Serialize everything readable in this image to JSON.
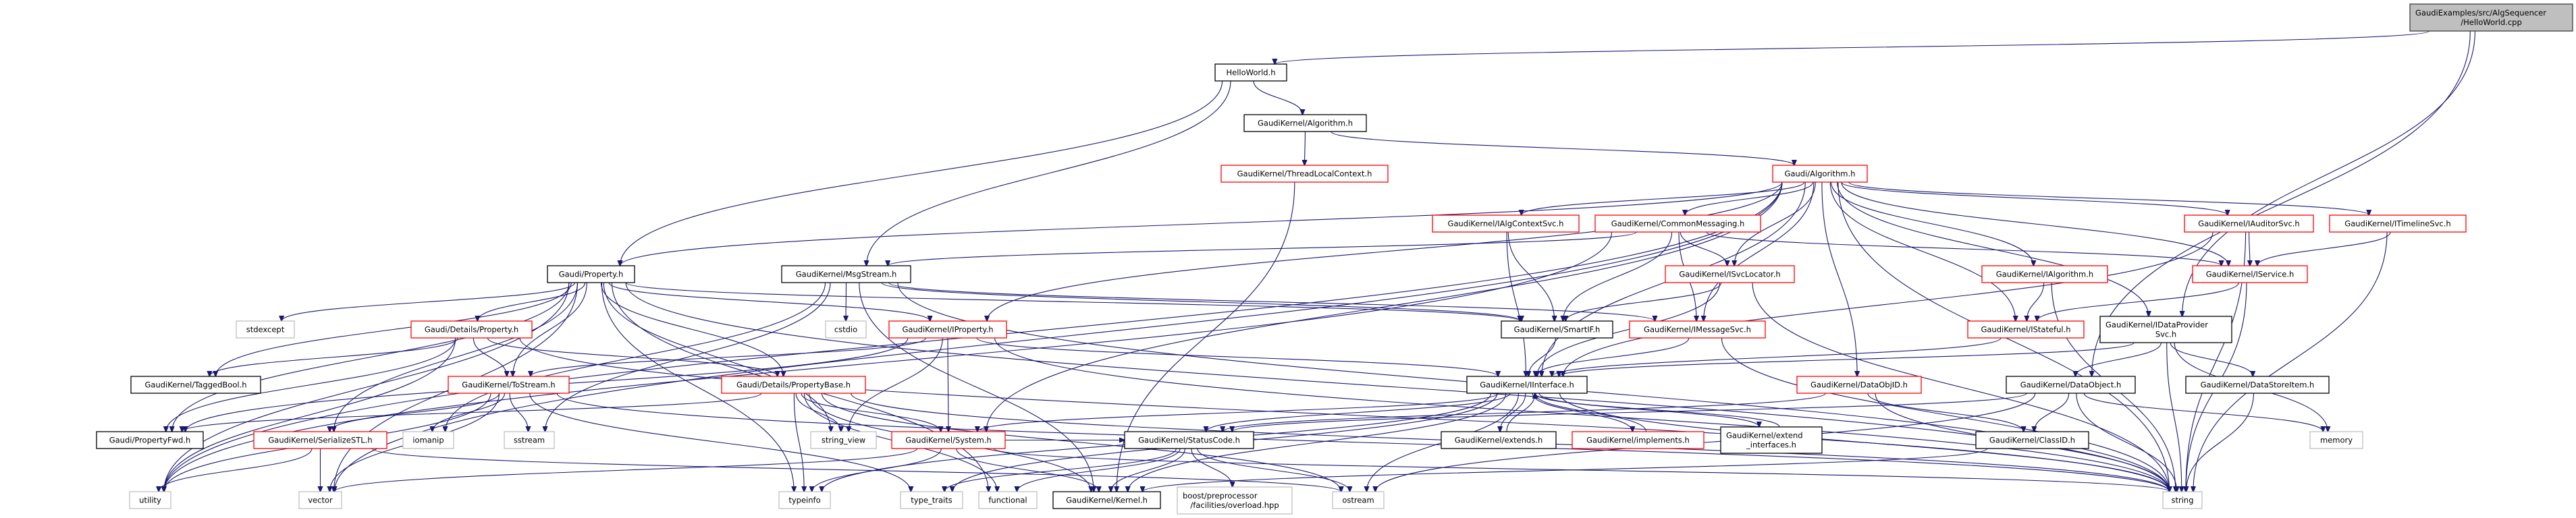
{
  "colors": {
    "edge": "#191970",
    "root_fill": "#bfbfbf",
    "root_border": "#404040",
    "documented_border": "#000000",
    "truncated_border": "#ff0000",
    "external_border": "#bfbfbf"
  },
  "nodes": [
    {
      "id": "root",
      "label": "GaudiExamples/src/AlgSequencer\n/HelloWorld.cpp",
      "kind": "root"
    },
    {
      "id": "hw",
      "label": "HelloWorld.h",
      "kind": "documented"
    },
    {
      "id": "gkalg",
      "label": "GaudiKernel/Algorithm.h",
      "kind": "documented"
    },
    {
      "id": "tlc",
      "label": "GaudiKernel/ThreadLocalContext.h",
      "kind": "truncated"
    },
    {
      "id": "galg",
      "label": "Gaudi/Algorithm.h",
      "kind": "truncated"
    },
    {
      "id": "algctx",
      "label": "GaudiKernel/IAlgContextSvc.h",
      "kind": "truncated"
    },
    {
      "id": "cmsg",
      "label": "GaudiKernel/CommonMessaging.h",
      "kind": "truncated"
    },
    {
      "id": "aud",
      "label": "GaudiKernel/IAuditorSvc.h",
      "kind": "truncated"
    },
    {
      "id": "tl",
      "label": "GaudiKernel/ITimelineSvc.h",
      "kind": "truncated"
    },
    {
      "id": "prop",
      "label": "Gaudi/Property.h",
      "kind": "documented"
    },
    {
      "id": "msg",
      "label": "GaudiKernel/MsgStream.h",
      "kind": "documented"
    },
    {
      "id": "svcloc",
      "label": "GaudiKernel/ISvcLocator.h",
      "kind": "truncated"
    },
    {
      "id": "ialg",
      "label": "GaudiKernel/IAlgorithm.h",
      "kind": "truncated"
    },
    {
      "id": "isvc",
      "label": "GaudiKernel/IService.h",
      "kind": "truncated"
    },
    {
      "id": "stdexcept",
      "label": "stdexcept",
      "kind": "external"
    },
    {
      "id": "dprop",
      "label": "Gaudi/Details/Property.h",
      "kind": "truncated"
    },
    {
      "id": "cstdio",
      "label": "cstdio",
      "kind": "external"
    },
    {
      "id": "iprop",
      "label": "GaudiKernel/IProperty.h",
      "kind": "truncated"
    },
    {
      "id": "smartif",
      "label": "GaudiKernel/SmartIF.h",
      "kind": "documented"
    },
    {
      "id": "imsg",
      "label": "GaudiKernel/IMessageSvc.h",
      "kind": "truncated"
    },
    {
      "id": "istate",
      "label": "GaudiKernel/IStateful.h",
      "kind": "truncated"
    },
    {
      "id": "idp",
      "label": "GaudiKernel/IDataProvider\nSvc.h",
      "kind": "documented"
    },
    {
      "id": "tagged",
      "label": "GaudiKernel/TaggedBool.h",
      "kind": "documented"
    },
    {
      "id": "tostream",
      "label": "GaudiKernel/ToStream.h",
      "kind": "truncated"
    },
    {
      "id": "pbase",
      "label": "Gaudi/Details/PropertyBase.h",
      "kind": "truncated"
    },
    {
      "id": "iint",
      "label": "GaudiKernel/IInterface.h",
      "kind": "documented"
    },
    {
      "id": "dobjid",
      "label": "GaudiKernel/DataObjID.h",
      "kind": "truncated"
    },
    {
      "id": "dobj",
      "label": "GaudiKernel/DataObject.h",
      "kind": "documented"
    },
    {
      "id": "dsi",
      "label": "GaudiKernel/DataStoreItem.h",
      "kind": "documented"
    },
    {
      "id": "pfwd",
      "label": "Gaudi/PropertyFwd.h",
      "kind": "documented"
    },
    {
      "id": "sstl",
      "label": "GaudiKernel/SerializeSTL.h",
      "kind": "truncated"
    },
    {
      "id": "iomanip",
      "label": "iomanip",
      "kind": "external"
    },
    {
      "id": "sstream",
      "label": "sstream",
      "kind": "external"
    },
    {
      "id": "string_view",
      "label": "string_view",
      "kind": "external"
    },
    {
      "id": "system",
      "label": "GaudiKernel/System.h",
      "kind": "truncated"
    },
    {
      "id": "statuscode",
      "label": "GaudiKernel/StatusCode.h",
      "kind": "documented"
    },
    {
      "id": "extends",
      "label": "GaudiKernel/extends.h",
      "kind": "documented"
    },
    {
      "id": "impl",
      "label": "GaudiKernel/implements.h",
      "kind": "truncated"
    },
    {
      "id": "extif",
      "label": "GaudiKernel/extend\n_interfaces.h",
      "kind": "documented"
    },
    {
      "id": "classid",
      "label": "GaudiKernel/ClassID.h",
      "kind": "documented"
    },
    {
      "id": "memory",
      "label": "memory",
      "kind": "external"
    },
    {
      "id": "utility",
      "label": "utility",
      "kind": "external"
    },
    {
      "id": "vector",
      "label": "vector",
      "kind": "external"
    },
    {
      "id": "typeinfo",
      "label": "typeinfo",
      "kind": "external"
    },
    {
      "id": "type_traits",
      "label": "type_traits",
      "kind": "external"
    },
    {
      "id": "functional",
      "label": "functional",
      "kind": "external"
    },
    {
      "id": "kernel",
      "label": "GaudiKernel/Kernel.h",
      "kind": "documented"
    },
    {
      "id": "boost",
      "label": "boost/preprocessor\n/facilities/overload.hpp",
      "kind": "external"
    },
    {
      "id": "ostream",
      "label": "ostream",
      "kind": "external"
    },
    {
      "id": "string",
      "label": "string",
      "kind": "external"
    }
  ],
  "edges": [
    [
      "root",
      "hw"
    ],
    [
      "root",
      "idp"
    ],
    [
      "root",
      "dobj"
    ],
    [
      "hw",
      "gkalg"
    ],
    [
      "hw",
      "prop"
    ],
    [
      "hw",
      "msg"
    ],
    [
      "gkalg",
      "tlc"
    ],
    [
      "gkalg",
      "galg"
    ],
    [
      "tlc",
      "kernel"
    ],
    [
      "galg",
      "prop"
    ],
    [
      "galg",
      "algctx"
    ],
    [
      "galg",
      "cmsg"
    ],
    [
      "galg",
      "aud"
    ],
    [
      "galg",
      "tl"
    ],
    [
      "galg",
      "isvc"
    ],
    [
      "galg",
      "ialg"
    ],
    [
      "galg",
      "istate"
    ],
    [
      "galg",
      "svcloc"
    ],
    [
      "galg",
      "imsg"
    ],
    [
      "galg",
      "idp"
    ],
    [
      "galg",
      "dobjid"
    ],
    [
      "galg",
      "iprop"
    ],
    [
      "galg",
      "system"
    ],
    [
      "galg",
      "string"
    ],
    [
      "galg",
      "vector"
    ],
    [
      "galg",
      "utility"
    ],
    [
      "galg",
      "iint"
    ],
    [
      "algctx",
      "smartif"
    ],
    [
      "algctx",
      "iint"
    ],
    [
      "cmsg",
      "msg"
    ],
    [
      "cmsg",
      "imsg"
    ],
    [
      "cmsg",
      "svcloc"
    ],
    [
      "cmsg",
      "smartif"
    ],
    [
      "cmsg",
      "isvc"
    ],
    [
      "cmsg",
      "utility"
    ],
    [
      "aud",
      "isvc"
    ],
    [
      "aud",
      "iint"
    ],
    [
      "aud",
      "string"
    ],
    [
      "tl",
      "isvc"
    ],
    [
      "tl",
      "string"
    ],
    [
      "prop",
      "dprop"
    ],
    [
      "prop",
      "tostream"
    ],
    [
      "prop",
      "pbase"
    ],
    [
      "prop",
      "stdexcept"
    ],
    [
      "prop",
      "tagged"
    ],
    [
      "prop",
      "pfwd"
    ],
    [
      "prop",
      "iprop"
    ],
    [
      "prop",
      "smartif"
    ],
    [
      "prop",
      "string"
    ],
    [
      "prop",
      "string_view"
    ],
    [
      "prop",
      "typeinfo"
    ],
    [
      "prop",
      "utility"
    ],
    [
      "prop",
      "vector"
    ],
    [
      "prop",
      "functional"
    ],
    [
      "prop",
      "sstl"
    ],
    [
      "msg",
      "cstdio"
    ],
    [
      "msg",
      "sstream"
    ],
    [
      "msg",
      "iomanip"
    ],
    [
      "msg",
      "imsg"
    ],
    [
      "msg",
      "smartif"
    ],
    [
      "msg",
      "string"
    ],
    [
      "msg",
      "kernel"
    ],
    [
      "svcloc",
      "smartif"
    ],
    [
      "svcloc",
      "iint"
    ],
    [
      "svcloc",
      "string"
    ],
    [
      "ialg",
      "istate"
    ],
    [
      "ialg",
      "string"
    ],
    [
      "isvc",
      "istate"
    ],
    [
      "isvc",
      "string"
    ],
    [
      "dprop",
      "tostream"
    ],
    [
      "dprop",
      "pbase"
    ],
    [
      "dprop",
      "tagged"
    ],
    [
      "dprop",
      "pfwd"
    ],
    [
      "dprop",
      "utility"
    ],
    [
      "dprop",
      "string"
    ],
    [
      "iprop",
      "pfwd"
    ],
    [
      "iprop",
      "iint"
    ],
    [
      "iprop",
      "string_view"
    ],
    [
      "iprop",
      "string"
    ],
    [
      "iprop",
      "tostream"
    ],
    [
      "iprop",
      "system"
    ],
    [
      "smartif",
      "iint"
    ],
    [
      "imsg",
      "iint"
    ],
    [
      "imsg",
      "string"
    ],
    [
      "istate",
      "iint"
    ],
    [
      "idp",
      "dobj"
    ],
    [
      "idp",
      "dsi"
    ],
    [
      "idp",
      "iint"
    ],
    [
      "idp",
      "string"
    ],
    [
      "idp",
      "memory"
    ],
    [
      "tostream",
      "iomanip"
    ],
    [
      "tostream",
      "sstream"
    ],
    [
      "tostream",
      "sstl"
    ],
    [
      "tostream",
      "vector"
    ],
    [
      "tostream",
      "string"
    ],
    [
      "tostream",
      "type_traits"
    ],
    [
      "tostream",
      "utility"
    ],
    [
      "pbase",
      "string_view"
    ],
    [
      "pbase",
      "typeinfo"
    ],
    [
      "pbase",
      "functional"
    ],
    [
      "pbase",
      "string"
    ],
    [
      "pbase",
      "system"
    ],
    [
      "pbase",
      "pfwd"
    ],
    [
      "pbase",
      "ostream"
    ],
    [
      "pbase",
      "kernel"
    ],
    [
      "iint",
      "statuscode"
    ],
    [
      "iint",
      "kernel"
    ],
    [
      "iint",
      "system"
    ],
    [
      "iint",
      "typeinfo"
    ],
    [
      "iint",
      "ostream"
    ],
    [
      "iint",
      "type_traits"
    ],
    [
      "iint",
      "extends"
    ],
    [
      "iint",
      "impl"
    ],
    [
      "iint",
      "extif"
    ],
    [
      "iint",
      "string"
    ],
    [
      "extends",
      "iint"
    ],
    [
      "impl",
      "iint"
    ],
    [
      "extif",
      "iint"
    ],
    [
      "dobjid",
      "classid"
    ],
    [
      "dobjid",
      "string"
    ],
    [
      "dobjid",
      "statuscode"
    ],
    [
      "dobj",
      "classid"
    ],
    [
      "dobj",
      "string"
    ],
    [
      "dobj",
      "memory"
    ],
    [
      "dobj",
      "statuscode"
    ],
    [
      "dobj",
      "ostream"
    ],
    [
      "dsi",
      "string"
    ],
    [
      "sstl",
      "utility"
    ],
    [
      "sstl",
      "vector"
    ],
    [
      "sstl",
      "ostream"
    ],
    [
      "system",
      "kernel"
    ],
    [
      "system",
      "statuscode"
    ],
    [
      "system",
      "typeinfo"
    ],
    [
      "system",
      "vector"
    ],
    [
      "system",
      "string"
    ],
    [
      "statuscode",
      "kernel"
    ],
    [
      "statuscode",
      "boost"
    ],
    [
      "statuscode",
      "functional"
    ],
    [
      "statuscode",
      "ostream"
    ],
    [
      "statuscode",
      "type_traits"
    ],
    [
      "classid",
      "kernel"
    ]
  ]
}
